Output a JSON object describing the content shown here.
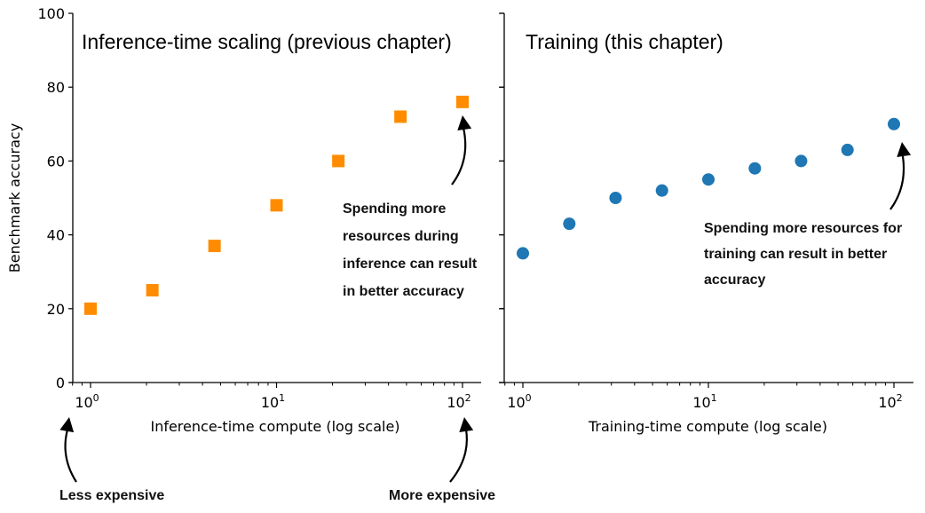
{
  "figure": {
    "ylabel": "Benchmark accuracy",
    "yticks": [
      "0",
      "20",
      "40",
      "60",
      "80",
      "100"
    ],
    "xticks": [
      {
        "base": "10",
        "exp": "0"
      },
      {
        "base": "10",
        "exp": "1"
      },
      {
        "base": "10",
        "exp": "2"
      }
    ],
    "left": {
      "title": "Inference-time scaling (previous chapter)",
      "xlabel": "Inference-time compute (log scale)",
      "annotation": [
        "Spending more",
        "resources during",
        "inference can result",
        "in better accuracy"
      ],
      "below_left": "Less expensive",
      "below_right": "More expensive"
    },
    "right": {
      "title": "Training (this chapter)",
      "xlabel": "Training-time compute (log scale)",
      "annotation": [
        "Spending more resources for",
        "training can result in better",
        "accuracy"
      ]
    }
  },
  "chart_data": [
    {
      "type": "scatter",
      "title": "Inference-time scaling (previous chapter)",
      "xlabel": "Inference-time compute (log scale)",
      "ylabel": "Benchmark accuracy",
      "xscale": "log",
      "xlim": [
        0.8,
        125
      ],
      "ylim": [
        0,
        100
      ],
      "marker": "square",
      "color": "#ff8c00",
      "x": [
        1,
        2.15,
        4.64,
        10,
        21.5,
        46.4,
        100
      ],
      "y": [
        20,
        25,
        37,
        48,
        60,
        72,
        76
      ],
      "annotations": [
        "Spending more resources during inference can result in better accuracy",
        "Less expensive",
        "More expensive"
      ]
    },
    {
      "type": "scatter",
      "title": "Training (this chapter)",
      "xlabel": "Training-time compute (log scale)",
      "ylabel": "Benchmark accuracy",
      "xscale": "log",
      "xlim": [
        0.8,
        125
      ],
      "ylim": [
        0,
        100
      ],
      "marker": "circle",
      "color": "#1f77b4",
      "x": [
        1,
        1.78,
        3.16,
        5.62,
        10,
        17.8,
        31.6,
        56.2,
        100
      ],
      "y": [
        35,
        43,
        50,
        52,
        55,
        58,
        60,
        63,
        70
      ],
      "annotations": [
        "Spending more resources for training can result in better accuracy"
      ]
    }
  ]
}
